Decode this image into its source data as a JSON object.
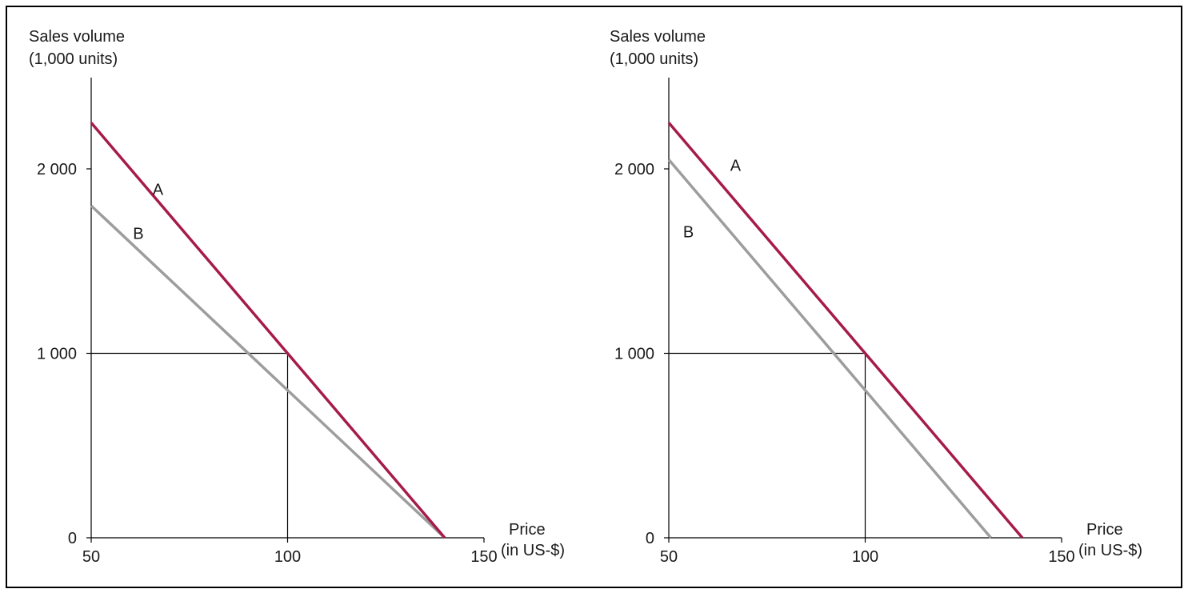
{
  "colors": {
    "series_a": "#a51c48",
    "series_b": "#9d9d9d",
    "frame": "#000000"
  },
  "chart_data": [
    {
      "type": "line",
      "ylabel": [
        "Sales volume",
        "(1,000 units)"
      ],
      "xlabel": [
        "Price",
        "(in US-$)"
      ],
      "xlim": [
        50,
        150
      ],
      "ylim": [
        0,
        2400
      ],
      "x_ticks": [
        {
          "value": 50,
          "label": "50"
        },
        {
          "value": 100,
          "label": "100"
        },
        {
          "value": 150,
          "label": "150"
        }
      ],
      "y_ticks": [
        {
          "value": 0,
          "label": "0"
        },
        {
          "value": 1000,
          "label": "1 000"
        },
        {
          "value": 2000,
          "label": "2 000"
        }
      ],
      "reference_point": {
        "x": 100,
        "y": 1000
      },
      "grid": false,
      "legend": "none",
      "series": [
        {
          "name": "A",
          "color_key": "series_a",
          "x": [
            50,
            80,
            90,
            100,
            140
          ],
          "y": [
            2250,
            1500,
            1250,
            1000,
            0
          ],
          "label_at": {
            "x": 67,
            "y": 1860
          }
        },
        {
          "name": "B",
          "color_key": "series_b",
          "x": [
            50,
            140
          ],
          "y": [
            1800,
            0
          ],
          "label_at": {
            "x": 62,
            "y": 1620
          }
        }
      ]
    },
    {
      "type": "line",
      "ylabel": [
        "Sales volume",
        "(1,000 units)"
      ],
      "xlabel": [
        "Price",
        "(in US-$)"
      ],
      "xlim": [
        50,
        150
      ],
      "ylim": [
        0,
        2400
      ],
      "x_ticks": [
        {
          "value": 50,
          "label": "50"
        },
        {
          "value": 100,
          "label": "100"
        },
        {
          "value": 150,
          "label": "150"
        }
      ],
      "y_ticks": [
        {
          "value": 0,
          "label": "0"
        },
        {
          "value": 1000,
          "label": "1 000"
        },
        {
          "value": 2000,
          "label": "2 000"
        }
      ],
      "reference_point": {
        "x": 100,
        "y": 1000
      },
      "grid": false,
      "legend": "none",
      "series": [
        {
          "name": "A",
          "color_key": "series_a",
          "x": [
            50,
            140
          ],
          "y": [
            2250,
            0
          ],
          "label_at": {
            "x": 67,
            "y": 1990
          }
        },
        {
          "name": "B",
          "color_key": "series_b",
          "x": [
            50,
            132
          ],
          "y": [
            2050,
            0
          ],
          "label_at": {
            "x": 55,
            "y": 1630
          }
        }
      ]
    }
  ]
}
